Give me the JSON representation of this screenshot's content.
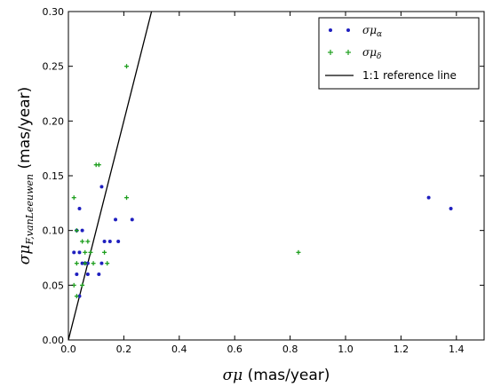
{
  "chart_data": {
    "type": "scatter",
    "xlabel_math": "σμ",
    "xlabel_text": " (mas/year)",
    "ylabel_math": "σμ",
    "ylabel_sub": "F,vanLeeuwen",
    "ylabel_text": " (mas/year)",
    "xlim": [
      0.0,
      1.5
    ],
    "ylim": [
      0.0,
      0.3
    ],
    "x_ticks": [
      "0.0",
      "0.2",
      "0.4",
      "0.6",
      "0.8",
      "1.0",
      "1.2",
      "1.4"
    ],
    "y_ticks": [
      "0.00",
      "0.05",
      "0.10",
      "0.15",
      "0.20",
      "0.25",
      "0.30"
    ],
    "grid": false,
    "legend_position": "top-right",
    "series": [
      {
        "name_math": "σμ",
        "name_sub": "α",
        "color": "#1f1fbf",
        "marker": "dot",
        "points": [
          [
            0.03,
            0.1
          ],
          [
            0.04,
            0.12
          ],
          [
            0.05,
            0.1
          ],
          [
            0.02,
            0.08
          ],
          [
            0.04,
            0.08
          ],
          [
            0.06,
            0.07
          ],
          [
            0.07,
            0.07
          ],
          [
            0.05,
            0.07
          ],
          [
            0.03,
            0.06
          ],
          [
            0.04,
            0.04
          ],
          [
            0.11,
            0.06
          ],
          [
            0.12,
            0.07
          ],
          [
            0.13,
            0.09
          ],
          [
            0.15,
            0.09
          ],
          [
            0.18,
            0.09
          ],
          [
            0.17,
            0.11
          ],
          [
            0.23,
            0.11
          ],
          [
            0.12,
            0.14
          ],
          [
            0.07,
            0.06
          ],
          [
            1.3,
            0.13
          ],
          [
            1.38,
            0.12
          ]
        ]
      },
      {
        "name_math": "σμ",
        "name_sub": "δ",
        "color": "#1f9f1f",
        "marker": "plus",
        "points": [
          [
            0.02,
            0.13
          ],
          [
            0.03,
            0.1
          ],
          [
            0.05,
            0.09
          ],
          [
            0.07,
            0.09
          ],
          [
            0.03,
            0.07
          ],
          [
            0.06,
            0.08
          ],
          [
            0.08,
            0.08
          ],
          [
            0.05,
            0.05
          ],
          [
            0.02,
            0.05
          ],
          [
            0.03,
            0.04
          ],
          [
            0.1,
            0.16
          ],
          [
            0.11,
            0.16
          ],
          [
            0.09,
            0.07
          ],
          [
            0.13,
            0.08
          ],
          [
            0.14,
            0.07
          ],
          [
            0.21,
            0.13
          ],
          [
            0.21,
            0.25
          ],
          [
            0.83,
            0.08
          ],
          [
            0.06,
            0.07
          ]
        ]
      }
    ],
    "reference_line": {
      "name": "1:1 reference line",
      "color": "#000000",
      "points": [
        [
          0.0,
          0.0
        ],
        [
          0.3,
          0.3
        ]
      ]
    }
  }
}
